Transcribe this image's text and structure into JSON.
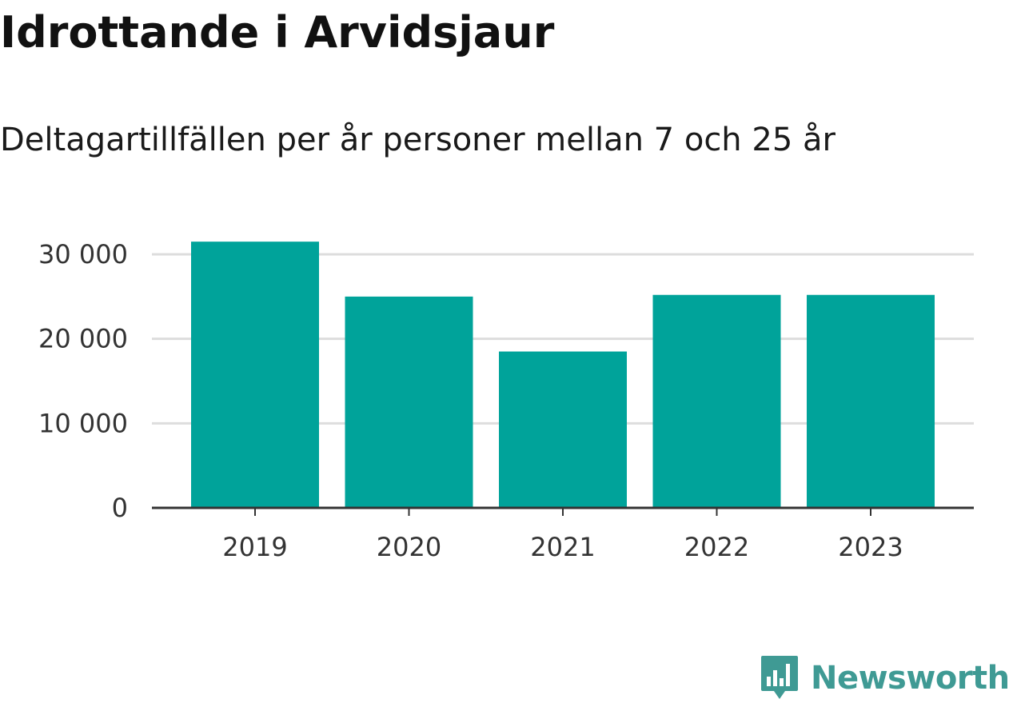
{
  "chart_data": {
    "type": "bar",
    "title": "Idrottande i Arvidsjaur",
    "subtitle": "Deltagartillfällen per år personer mellan 7 och 25 år",
    "categories": [
      "2019",
      "2020",
      "2021",
      "2022",
      "2023"
    ],
    "values": [
      31500,
      25000,
      18500,
      25200,
      25200
    ],
    "xlabel": "",
    "ylabel": "",
    "ylim": [
      0,
      30000
    ],
    "yticks": [
      0,
      10000,
      20000,
      30000
    ],
    "ytick_labels": [
      "0",
      "10 000",
      "20 000",
      "30 000"
    ],
    "grid": true,
    "legend": "none",
    "bar_color": "#00a39a",
    "grid_color": "#dddddd",
    "axis_color": "#333333"
  },
  "branding": {
    "logo_text": "Newsworthy",
    "logo_icon": "newsworthy-chart-bubble-icon",
    "logo_color": "#3f9a94"
  }
}
